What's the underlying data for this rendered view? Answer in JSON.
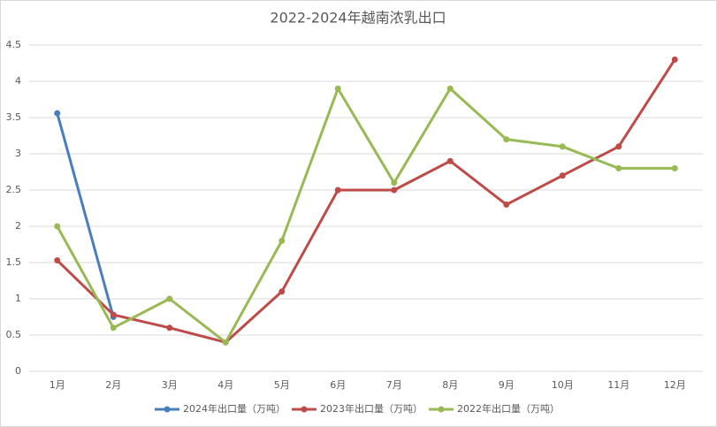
{
  "chart_data": {
    "type": "line",
    "title": "2022-2024年越南浓乳出口",
    "categories": [
      "1月",
      "2月",
      "3月",
      "4月",
      "5月",
      "6月",
      "7月",
      "8月",
      "9月",
      "10月",
      "11月",
      "12月"
    ],
    "series": [
      {
        "name": "2024年出口量（万吨）",
        "color": "#4a7ebb",
        "values": [
          3.56,
          0.75,
          null,
          null,
          null,
          null,
          null,
          null,
          null,
          null,
          null,
          null
        ]
      },
      {
        "name": "2023年出口量（万吨）",
        "color": "#be4b48",
        "values": [
          1.53,
          0.78,
          0.6,
          0.4,
          1.1,
          2.5,
          2.5,
          2.9,
          2.3,
          2.7,
          3.1,
          4.3
        ]
      },
      {
        "name": "2022年出口量（万吨）",
        "color": "#98b954",
        "values": [
          2.0,
          0.6,
          1.0,
          0.4,
          1.8,
          3.9,
          2.6,
          3.9,
          3.2,
          3.1,
          2.8,
          2.8
        ]
      }
    ],
    "ylim": [
      0,
      4.5
    ],
    "yticks": [
      0,
      0.5,
      1,
      1.5,
      2,
      2.5,
      3,
      3.5,
      4,
      4.5
    ],
    "grid": true,
    "legend": "bottom"
  }
}
